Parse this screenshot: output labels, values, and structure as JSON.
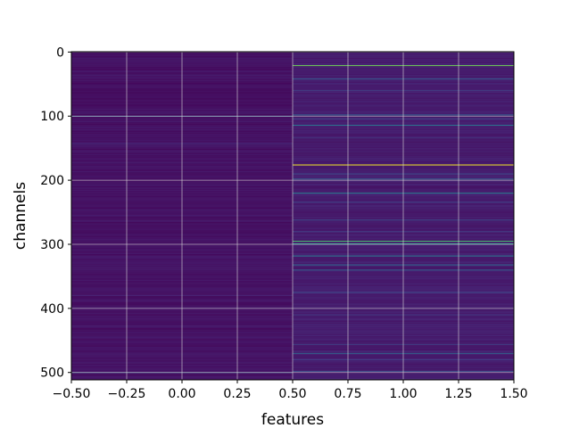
{
  "chart_data": {
    "type": "heatmap",
    "xlabel": "features",
    "ylabel": "channels",
    "xlim": [
      -0.5,
      1.5
    ],
    "ylim": [
      511.5,
      -0.5
    ],
    "y_inverted": true,
    "grid": true,
    "colormap": "viridis",
    "colorbar": false,
    "rows": 512,
    "columns": [
      0,
      1
    ],
    "x_ticks": [
      "−0.50",
      "−0.25",
      "0.00",
      "0.25",
      "0.50",
      "0.75",
      "1.00",
      "1.25",
      "1.50"
    ],
    "y_ticks": [
      "0",
      "100",
      "200",
      "300",
      "400",
      "500"
    ],
    "x_tick_values": [
      -0.5,
      -0.25,
      0.0,
      0.25,
      0.5,
      0.75,
      1.0,
      1.25,
      1.5
    ],
    "y_tick_values": [
      0,
      100,
      200,
      300,
      400,
      500
    ],
    "vmin": 0,
    "vmax": 1,
    "column_0": {
      "background": 0.04,
      "highlights": [
        {
          "channel": 100,
          "value": 0.28
        },
        {
          "channel": 143,
          "value": 0.12
        },
        {
          "channel": 380,
          "value": 0.1
        },
        {
          "channel": 500,
          "value": 0.26
        }
      ]
    },
    "column_1": {
      "background": 0.07,
      "highlights": [
        {
          "channel": 21,
          "value": 0.78
        },
        {
          "channel": 42,
          "value": 0.3
        },
        {
          "channel": 60,
          "value": 0.18
        },
        {
          "channel": 98,
          "value": 0.32
        },
        {
          "channel": 104,
          "value": 0.2
        },
        {
          "channel": 114,
          "value": 0.38
        },
        {
          "channel": 134,
          "value": 0.16
        },
        {
          "channel": 176,
          "value": 0.98
        },
        {
          "channel": 190,
          "value": 0.22
        },
        {
          "channel": 198,
          "value": 0.3
        },
        {
          "channel": 220,
          "value": 0.42
        },
        {
          "channel": 234,
          "value": 0.2
        },
        {
          "channel": 262,
          "value": 0.22
        },
        {
          "channel": 280,
          "value": 0.18
        },
        {
          "channel": 295,
          "value": 0.7
        },
        {
          "channel": 299,
          "value": 0.58
        },
        {
          "channel": 318,
          "value": 0.4
        },
        {
          "channel": 332,
          "value": 0.34
        },
        {
          "channel": 340,
          "value": 0.3
        },
        {
          "channel": 375,
          "value": 0.22
        },
        {
          "channel": 410,
          "value": 0.16
        },
        {
          "channel": 456,
          "value": 0.2
        },
        {
          "channel": 470,
          "value": 0.32
        },
        {
          "channel": 480,
          "value": 0.18
        },
        {
          "channel": 498,
          "value": 0.24
        }
      ]
    }
  },
  "colors": {
    "viridis_stops": [
      "#440154",
      "#482878",
      "#3e4989",
      "#31688e",
      "#26828e",
      "#1f9e89",
      "#35b779",
      "#6ece58",
      "#b5de2b",
      "#fde725"
    ],
    "grid": "#d8d8d8",
    "axis": "#000000"
  }
}
